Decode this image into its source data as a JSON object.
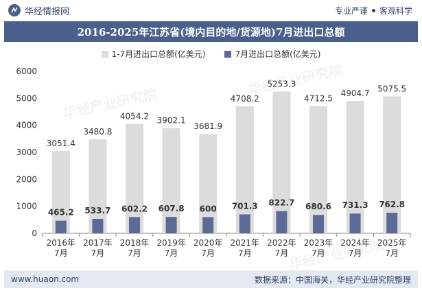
{
  "header": {
    "brand_name": "华经情报网",
    "slogan_left": "专业严谨",
    "slogan_right": "客观科学"
  },
  "footer": {
    "website": "www.huaon.com",
    "source": "数据来源：中国海关，华经产业研究院整理"
  },
  "watermark": "华经产业研究院",
  "colors": {
    "title_band": "#4a5f8c",
    "series_1": "#dcdcdc",
    "series_2": "#5b6b95"
  },
  "chart_data": {
    "type": "bar",
    "title": "2016-2025年江苏省(境内目的地/货源地)7月进出口总额",
    "categories": [
      "2016年\n7月",
      "2017年\n7月",
      "2018年\n7月",
      "2019年\n7月",
      "2020年\n7月",
      "2021年\n7月",
      "2022年\n7月",
      "2023年\n7月",
      "2024年\n7月",
      "2025年\n7月"
    ],
    "series": [
      {
        "name": "1-7月进出口总额(亿美元)",
        "values": [
          3051.4,
          3480.8,
          4054.2,
          3902.1,
          3681.9,
          4708.2,
          5253.3,
          4712.5,
          4904.7,
          5075.5
        ],
        "labels": [
          "3051.4",
          "3480.8",
          "4054.2",
          "3902.1",
          "3681.9",
          "4708.2",
          "5253.3",
          "4712.5",
          "4904.7",
          "5075.5"
        ]
      },
      {
        "name": "7月进出口总额(亿美元)",
        "values": [
          465.2,
          533.7,
          602.2,
          607.8,
          600,
          701.3,
          822.7,
          680.6,
          731.3,
          762.8
        ],
        "labels": [
          "465.2",
          "533.7",
          "602.2",
          "607.8",
          "600",
          "701.3",
          "822.7",
          "680.6",
          "731.3",
          "762.8"
        ]
      }
    ],
    "ylim": [
      0,
      6000
    ],
    "yticks": [
      0,
      1000,
      2000,
      3000,
      4000,
      5000,
      6000
    ],
    "grid": false,
    "legend_position": "top-center"
  }
}
